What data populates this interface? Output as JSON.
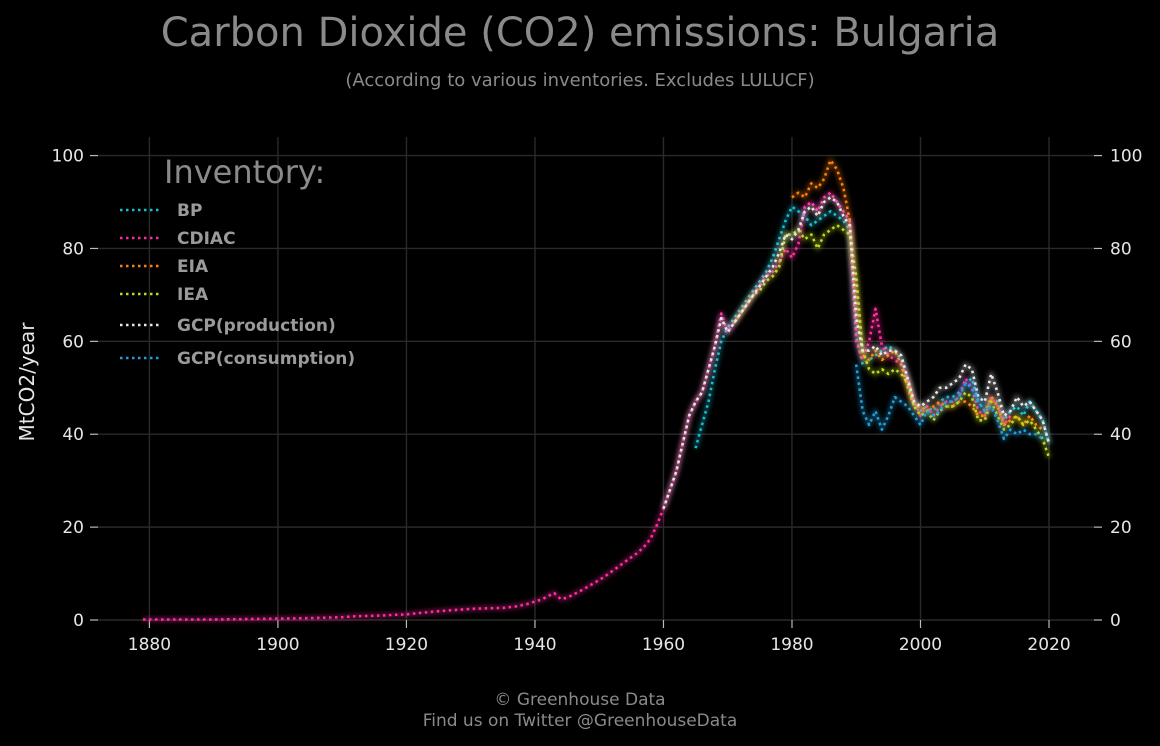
{
  "chart_data": {
    "type": "line",
    "title": "Carbon Dioxide (CO2) emissions: Bulgaria",
    "subtitle": "(According to various inventories. Excludes LULUCF)",
    "xlabel": "",
    "ylabel": "MtCO2/year",
    "xlim": [
      1872,
      2027
    ],
    "ylim": [
      0,
      104
    ],
    "x_ticks": [
      1880,
      1900,
      1920,
      1940,
      1960,
      1980,
      2000,
      2020
    ],
    "y_ticks": [
      0,
      20,
      40,
      60,
      80,
      100
    ],
    "grid": true,
    "legend": {
      "title": "Inventory:",
      "placement": "top-left"
    },
    "series": [
      {
        "name": "BP",
        "color": "#17becf",
        "x": [
          1965,
          1966,
          1967,
          1968,
          1969,
          1970,
          1971,
          1972,
          1973,
          1974,
          1975,
          1976,
          1977,
          1978,
          1979,
          1980,
          1981,
          1982,
          1983,
          1984,
          1985,
          1986,
          1987,
          1988,
          1989,
          1990,
          1991,
          1992,
          1993,
          1994,
          1995,
          1996,
          1997,
          1998,
          1999,
          2000,
          2001,
          2002,
          2003,
          2004,
          2005,
          2006,
          2007,
          2008,
          2009,
          2010,
          2011,
          2012,
          2013,
          2014,
          2015,
          2016,
          2017,
          2018,
          2019,
          2020
        ],
        "y": [
          37,
          42,
          47,
          54,
          60,
          63,
          65,
          67,
          69,
          71,
          73,
          75,
          78,
          82,
          86,
          89,
          88,
          87,
          85,
          86,
          87,
          88,
          87,
          86,
          84,
          61,
          55,
          56,
          57,
          58,
          59,
          58,
          56,
          52,
          47,
          45,
          46,
          45,
          47,
          48,
          48,
          49,
          51,
          52,
          47,
          45,
          48,
          47,
          43,
          45,
          46,
          44,
          47,
          45,
          43,
          38
        ]
      },
      {
        "name": "CDIAC",
        "color": "#ff2ea0",
        "x": [
          1879,
          1885,
          1890,
          1895,
          1900,
          1905,
          1910,
          1912,
          1915,
          1918,
          1920,
          1922,
          1925,
          1928,
          1930,
          1932,
          1935,
          1937,
          1939,
          1940,
          1941,
          1942,
          1943,
          1944,
          1945,
          1946,
          1947,
          1948,
          1949,
          1950,
          1951,
          1952,
          1953,
          1954,
          1955,
          1956,
          1957,
          1958,
          1959,
          1960,
          1961,
          1962,
          1963,
          1964,
          1965,
          1966,
          1967,
          1968,
          1969,
          1970,
          1971,
          1972,
          1973,
          1974,
          1975,
          1976,
          1977,
          1978,
          1979,
          1980,
          1981,
          1982,
          1983,
          1984,
          1985,
          1986,
          1987,
          1988,
          1989,
          1990,
          1991,
          1992,
          1993,
          1994,
          1995,
          1996,
          1997,
          1998,
          1999,
          2000,
          2001,
          2002,
          2003,
          2004,
          2005,
          2006,
          2007,
          2008,
          2009,
          2010,
          2011,
          2012,
          2013,
          2014
        ],
        "y": [
          0.1,
          0.1,
          0.1,
          0.2,
          0.3,
          0.4,
          0.6,
          0.8,
          0.9,
          1.1,
          1.2,
          1.5,
          1.9,
          2.2,
          2.4,
          2.5,
          2.6,
          2.9,
          3.5,
          4.0,
          4.4,
          5.1,
          5.8,
          4.5,
          4.8,
          5.5,
          6.2,
          7.0,
          7.8,
          8.6,
          9.5,
          10.5,
          11.5,
          12.5,
          13.5,
          14.5,
          15.8,
          17.5,
          20.5,
          24,
          28,
          32,
          38,
          44,
          47,
          49,
          54,
          59,
          66,
          62,
          64,
          66,
          68,
          70,
          72,
          74,
          75,
          77,
          80,
          78,
          81,
          89,
          90,
          88,
          91,
          92,
          90,
          88,
          86,
          60,
          56,
          60,
          67,
          59,
          57,
          56,
          55,
          52,
          47,
          44,
          46,
          44,
          46,
          47,
          47,
          48,
          52,
          50,
          45,
          44,
          48,
          46,
          42,
          44
        ]
      },
      {
        "name": "EIA",
        "color": "#ff7f0e",
        "x": [
          1980,
          1981,
          1982,
          1983,
          1984,
          1985,
          1986,
          1987,
          1988,
          1989,
          1990,
          1991,
          1992,
          1993,
          1994,
          1995,
          1996,
          1997,
          1998,
          1999,
          2000,
          2001,
          2002,
          2003,
          2004,
          2005,
          2006,
          2007,
          2008,
          2009,
          2010,
          2011,
          2012,
          2013,
          2014,
          2015,
          2016,
          2017,
          2018,
          2019
        ],
        "y": [
          91,
          92,
          91,
          94,
          93,
          95,
          99,
          97,
          93,
          86,
          70,
          57,
          56,
          58,
          56,
          57,
          58,
          55,
          50,
          46,
          46,
          45,
          46,
          47,
          46,
          46,
          47,
          47,
          46,
          44,
          44,
          48,
          46,
          42,
          43,
          44,
          42,
          44,
          42,
          41
        ]
      },
      {
        "name": "IEA",
        "color": "#bcdc1e",
        "x": [
          1971,
          1972,
          1973,
          1974,
          1975,
          1976,
          1977,
          1978,
          1979,
          1980,
          1981,
          1982,
          1983,
          1984,
          1985,
          1986,
          1987,
          1988,
          1989,
          1990,
          1991,
          1992,
          1993,
          1994,
          1995,
          1996,
          1997,
          1998,
          1999,
          2000,
          2001,
          2002,
          2003,
          2004,
          2005,
          2006,
          2007,
          2008,
          2009,
          2010,
          2011,
          2012,
          2013,
          2014,
          2015,
          2016,
          2017,
          2018,
          2019,
          2020
        ],
        "y": [
          64,
          66,
          68,
          70,
          71,
          73,
          74,
          76,
          83,
          83,
          84,
          82,
          83,
          80,
          83,
          84,
          85,
          84,
          83,
          74,
          58,
          54,
          53,
          54,
          53,
          54,
          53,
          51,
          46,
          44,
          45,
          43,
          45,
          46,
          46,
          47,
          49,
          48,
          43,
          43,
          47,
          44,
          41,
          42,
          44,
          42,
          43,
          41,
          39,
          35
        ]
      },
      {
        "name": "GCP(production)",
        "color": "#e8e8e8",
        "x": [
          1960,
          1961,
          1962,
          1963,
          1964,
          1965,
          1966,
          1967,
          1968,
          1969,
          1970,
          1971,
          1972,
          1973,
          1974,
          1975,
          1976,
          1977,
          1978,
          1979,
          1980,
          1981,
          1982,
          1983,
          1984,
          1985,
          1986,
          1987,
          1988,
          1989,
          1990,
          1991,
          1992,
          1993,
          1994,
          1995,
          1996,
          1997,
          1998,
          1999,
          2000,
          2001,
          2002,
          2003,
          2004,
          2005,
          2006,
          2007,
          2008,
          2009,
          2010,
          2011,
          2012,
          2013,
          2014,
          2015,
          2016,
          2017,
          2018,
          2019,
          2020
        ],
        "y": [
          24,
          28,
          32,
          38,
          44,
          47,
          49,
          54,
          59,
          65,
          62,
          64,
          66,
          68,
          70,
          72,
          74,
          76,
          79,
          83,
          82,
          84,
          88,
          89,
          87,
          90,
          91,
          90,
          87,
          85,
          65,
          58,
          58,
          59,
          57,
          58,
          58,
          57,
          52,
          47,
          46,
          47,
          48,
          50,
          50,
          51,
          52,
          55,
          54,
          48,
          47,
          53,
          49,
          44,
          45,
          48,
          46,
          47,
          45,
          43,
          38
        ]
      },
      {
        "name": "GCP(consumption)",
        "color": "#1f9fe0",
        "x": [
          1990,
          1991,
          1992,
          1993,
          1994,
          1995,
          1996,
          1997,
          1998,
          1999,
          2000,
          2001,
          2002,
          2003,
          2004,
          2005,
          2006,
          2007,
          2008,
          2009,
          2010,
          2011,
          2012,
          2013,
          2014,
          2015,
          2016,
          2017,
          2018,
          2019
        ],
        "y": [
          55,
          45,
          42,
          45,
          41,
          44,
          48,
          47,
          46,
          44,
          42,
          45,
          44,
          45,
          47,
          47,
          48,
          51,
          50,
          47,
          45,
          46,
          43,
          39,
          41,
          40,
          41,
          40,
          40,
          39
        ]
      }
    ]
  },
  "footer": {
    "credit": "© Greenhouse Data",
    "twitter": "Find us on Twitter @GreenhouseData"
  }
}
